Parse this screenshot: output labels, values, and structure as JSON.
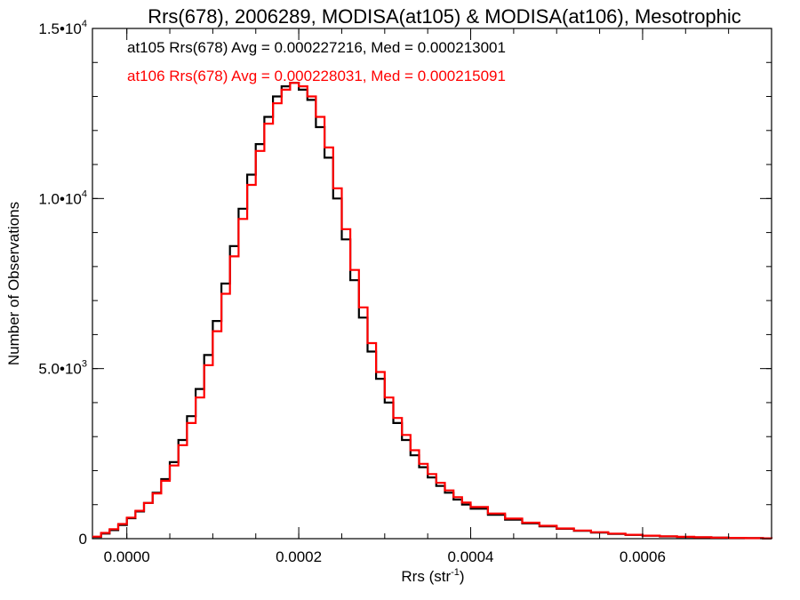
{
  "chart_data": {
    "type": "histogram",
    "title": "Rrs(678), 2006289, MODISA(at105) & MODISA(at106), Mesotrophic",
    "xlabel_base": "Rrs (str",
    "xlabel_sup": "-1",
    "xlabel_tail": ")",
    "ylabel": "Number of Observations",
    "xlim": [
      -4e-05,
      0.00075
    ],
    "ylim": [
      0,
      15000
    ],
    "x_ticks": [
      {
        "value": 0.0,
        "label": "0.0000"
      },
      {
        "value": 0.0002,
        "label": "0.0002"
      },
      {
        "value": 0.0004,
        "label": "0.0004"
      },
      {
        "value": 0.0006,
        "label": "0.0006"
      }
    ],
    "y_ticks": [
      {
        "value": 0,
        "base": "0",
        "exp": ""
      },
      {
        "value": 5000,
        "base": "5.0•10",
        "exp": "3"
      },
      {
        "value": 10000,
        "base": "1.0•10",
        "exp": "4"
      },
      {
        "value": 15000,
        "base": "1.5•10",
        "exp": "4"
      }
    ],
    "grid": false,
    "annotations": [
      {
        "text": "at105 Rrs(678) Avg = 0.000227216, Med = 0.000213001",
        "color": "#000000"
      },
      {
        "text": "at106 Rrs(678) Avg = 0.000228031, Med = 0.000215091",
        "color": "#ff0000"
      }
    ],
    "series": [
      {
        "color": "#000000",
        "x": [
          -4e-05,
          -3e-05,
          -2e-05,
          -1e-05,
          0.0,
          1e-05,
          2e-05,
          3e-05,
          4e-05,
          5e-05,
          6e-05,
          7e-05,
          8e-05,
          9e-05,
          0.0001,
          0.00011,
          0.00012,
          0.00013,
          0.00014,
          0.00015,
          0.00016,
          0.00017,
          0.00018,
          0.00019,
          0.0002,
          0.00021,
          0.00022,
          0.00023,
          0.00024,
          0.00025,
          0.00026,
          0.00027,
          0.00028,
          0.00029,
          0.0003,
          0.00031,
          0.00032,
          0.00033,
          0.00034,
          0.00035,
          0.00036,
          0.00037,
          0.00038,
          0.00039,
          0.0004,
          0.00042,
          0.00044,
          0.00046,
          0.00048,
          0.0005,
          0.00052,
          0.00054,
          0.00056,
          0.00058,
          0.0006,
          0.00062,
          0.00064,
          0.00066,
          0.00068,
          0.0007,
          0.00072,
          0.00074,
          0.00075
        ],
        "y": [
          50,
          150,
          250,
          400,
          600,
          800,
          1050,
          1350,
          1750,
          2250,
          2900,
          3600,
          4400,
          5400,
          6400,
          7500,
          8600,
          9700,
          10700,
          11600,
          12400,
          13000,
          13300,
          13400,
          13200,
          12900,
          12100,
          11200,
          10000,
          8800,
          7600,
          6500,
          5500,
          4700,
          4000,
          3400,
          2900,
          2450,
          2100,
          1800,
          1550,
          1350,
          1150,
          1000,
          880,
          700,
          560,
          450,
          360,
          290,
          230,
          180,
          140,
          110,
          85,
          65,
          50,
          40,
          30,
          22,
          15,
          10,
          8
        ]
      },
      {
        "color": "#ff0000",
        "x": [
          -4e-05,
          -3e-05,
          -2e-05,
          -1e-05,
          0.0,
          1e-05,
          2e-05,
          3e-05,
          4e-05,
          5e-05,
          6e-05,
          7e-05,
          8e-05,
          9e-05,
          0.0001,
          0.00011,
          0.00012,
          0.00013,
          0.00014,
          0.00015,
          0.00016,
          0.00017,
          0.00018,
          0.00019,
          0.0002,
          0.00021,
          0.00022,
          0.00023,
          0.00024,
          0.00025,
          0.00026,
          0.00027,
          0.00028,
          0.00029,
          0.0003,
          0.00031,
          0.00032,
          0.00033,
          0.00034,
          0.00035,
          0.00036,
          0.00037,
          0.00038,
          0.00039,
          0.0004,
          0.00042,
          0.00044,
          0.00046,
          0.00048,
          0.0005,
          0.00052,
          0.00054,
          0.00056,
          0.00058,
          0.0006,
          0.00062,
          0.00064,
          0.00066,
          0.00068,
          0.0007,
          0.00072,
          0.00074,
          0.00075
        ],
        "y": [
          60,
          170,
          280,
          430,
          620,
          820,
          1050,
          1330,
          1700,
          2150,
          2750,
          3400,
          4150,
          5100,
          6100,
          7200,
          8300,
          9400,
          10400,
          11400,
          12200,
          12800,
          13200,
          13400,
          13300,
          13000,
          12400,
          11500,
          10300,
          9100,
          7900,
          6800,
          5750,
          4900,
          4150,
          3550,
          3050,
          2600,
          2200,
          1900,
          1640,
          1420,
          1220,
          1060,
          930,
          740,
          590,
          470,
          380,
          300,
          240,
          190,
          150,
          115,
          90,
          70,
          55,
          42,
          32,
          24,
          16,
          11,
          9
        ]
      }
    ]
  }
}
